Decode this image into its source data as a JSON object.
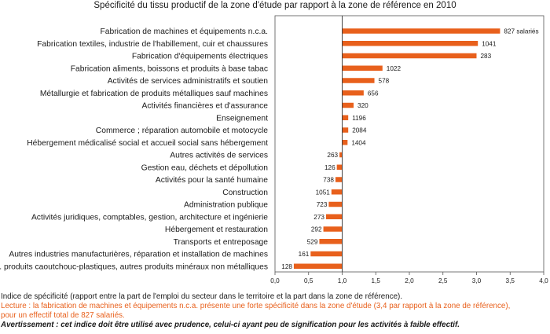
{
  "chart_data": {
    "type": "bar",
    "orientation": "horizontal",
    "title": "Spécificité du tissu productif de la zone d'étude par rapport à la zone de référence en 2010",
    "categories": [
      "Fabrication de machines et équipements n.c.a.",
      "Fabrication textiles, industrie de l'habillement, cuir et chaussures",
      "Fabrication d'équipements électriques",
      "Fabrication aliments, boissons et produits à base tabac",
      "Activités de services administratifs et soutien",
      "Métallurgie et fabrication de produits métalliques sauf machines",
      "Activités financières et d'assurance",
      "Enseignement",
      "Commerce ; réparation automobile et motocycle",
      "Hébergement médicalisé social et accueil social sans hébergement",
      "Autres activités de services",
      "Gestion eau, déchets et dépollution",
      "Activités pour la santé humaine",
      "Construction",
      "Administration publique",
      "Activités juridiques, comptables, gestion, architecture et ingénierie",
      "Hébergement et restauration",
      "Transports et entreposage",
      "Autres industries manufacturières, réparation et installation de machines",
      "Fab. produits caoutchouc-plastiques, autres produits minéraux non métalliques"
    ],
    "values": [
      3.35,
      3.02,
      3.0,
      1.6,
      1.48,
      1.32,
      1.17,
      1.09,
      1.09,
      1.08,
      0.96,
      0.92,
      0.9,
      0.84,
      0.8,
      0.76,
      0.72,
      0.66,
      0.53,
      0.28
    ],
    "data_labels": [
      "827 salariés",
      "1041",
      "283",
      "1022",
      "578",
      "656",
      "320",
      "1196",
      "2084",
      "1404",
      "263",
      "126",
      "738",
      "1051",
      "723",
      "273",
      "292",
      "529",
      "161",
      "128"
    ],
    "xlim": [
      0,
      4
    ],
    "xticks": [
      "0,0",
      "0,5",
      "1,0",
      "1,5",
      "2,0",
      "2,5",
      "3,0",
      "3,5",
      "4,0"
    ],
    "reference_line": 1.0,
    "bar_color": "#e8601c",
    "grid": false
  },
  "notes": {
    "definition": "Indice de spécificité (rapport entre la part de l'emploi du secteur dans le territoire et la part dans la zone de référence).",
    "reading_1": "Lecture : la fabrication de machines et équipements n.c.a. présente une forte spécificité dans la zone d'étude (3,4 par rapport à la zone de référence),",
    "reading_2": "pour un effectif total de 827 salariés.",
    "warning": "Avertissement : cet indice doit être utilisé avec prudence, celui-ci ayant peu de signification pour les activités à faible effectif."
  }
}
